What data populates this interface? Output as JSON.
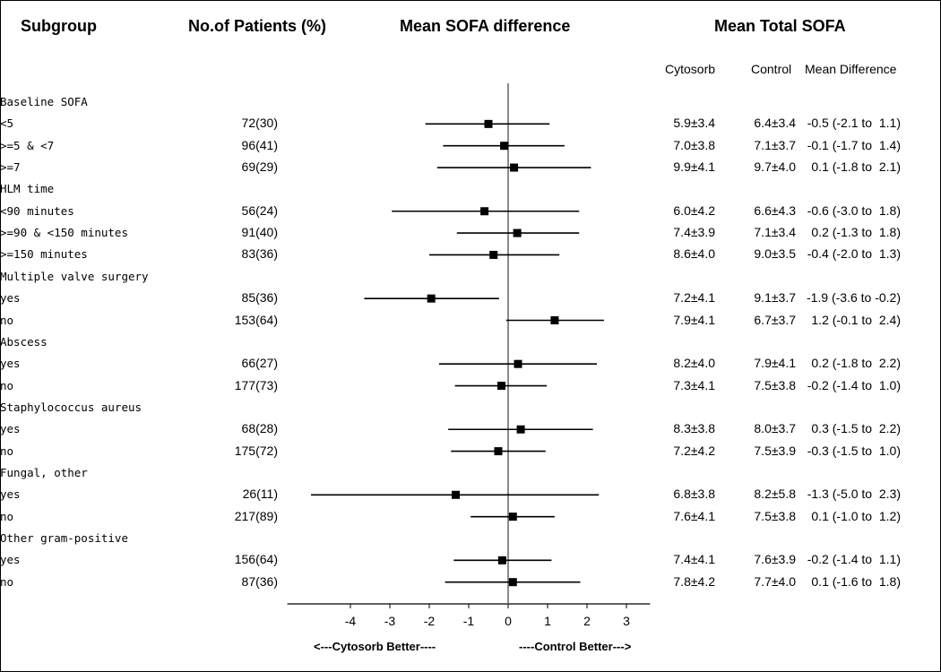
{
  "headers": {
    "subgroup": "Subgroup",
    "patients": "No.of Patients (%)",
    "sofa_diff": "Mean SOFA difference",
    "total_sofa": "Mean Total SOFA",
    "cytosorb": "Cytosorb",
    "control": "Control",
    "mean_difference": "Mean Difference"
  },
  "axis": {
    "direction_left": "<---Cytosorb Better----",
    "direction_right": "----Control Better--->"
  },
  "chart_data": {
    "type": "forest",
    "xlim": [
      -5.6,
      3.6
    ],
    "reference_line": 0,
    "xticks": [
      -4,
      -3,
      -2,
      -1,
      0,
      1,
      2,
      3
    ],
    "xtick_labels": [
      "-4",
      "-3",
      "-2",
      "-1",
      "0",
      "1",
      "2",
      "3"
    ],
    "groups": [
      {
        "label": "Baseline SOFA",
        "rows": [
          {
            "label": "<5",
            "n": "72(30)",
            "cytosorb": "5.9±3.4",
            "control": "6.4±3.4",
            "diff_text": "-0.5 (-2.1 to  1.1)",
            "mean": -0.5,
            "lo": -2.1,
            "hi": 1.05
          },
          {
            "label": ">=5 & <7",
            "n": "96(41)",
            "cytosorb": "7.0±3.8",
            "control": "7.1±3.7",
            "diff_text": "-0.1 (-1.7 to  1.4)",
            "mean": -0.1,
            "lo": -1.65,
            "hi": 1.43
          },
          {
            "label": ">=7",
            "n": "69(29)",
            "cytosorb": "9.9±4.1",
            "control": "9.7±4.0",
            "diff_text": " 0.1 (-1.8 to  2.1)",
            "mean": 0.15,
            "lo": -1.8,
            "hi": 2.1
          }
        ]
      },
      {
        "label": "HLM time",
        "rows": [
          {
            "label": "<90 minutes",
            "n": "56(24)",
            "cytosorb": "6.0±4.2",
            "control": "6.6±4.3",
            "diff_text": "-0.6 (-3.0 to  1.8)",
            "mean": -0.6,
            "lo": -2.95,
            "hi": 1.8
          },
          {
            "label": ">=90 & <150 minutes",
            "n": "91(40)",
            "cytosorb": "7.4±3.9",
            "control": "7.1±3.4",
            "diff_text": " 0.2 (-1.3 to  1.8)",
            "mean": 0.23,
            "lo": -1.3,
            "hi": 1.8
          },
          {
            "label": ">=150 minutes",
            "n": "83(36)",
            "cytosorb": "8.6±4.0",
            "control": "9.0±3.5",
            "diff_text": "-0.4 (-2.0 to  1.3)",
            "mean": -0.37,
            "lo": -2.0,
            "hi": 1.3
          }
        ]
      },
      {
        "label": "Multiple valve surgery",
        "rows": [
          {
            "label": "yes",
            "n": "85(36)",
            "cytosorb": "7.2±4.1",
            "control": "9.1±3.7",
            "diff_text": "-1.9 (-3.6 to -0.2)",
            "mean": -1.95,
            "lo": -3.65,
            "hi": -0.23
          },
          {
            "label": "no",
            "n": "153(64)",
            "cytosorb": "7.9±4.1",
            "control": "6.7±3.7",
            "diff_text": " 1.2 (-0.1 to  2.4)",
            "mean": 1.18,
            "lo": -0.05,
            "hi": 2.43
          }
        ]
      },
      {
        "label": "Abscess",
        "rows": [
          {
            "label": "yes",
            "n": "66(27)",
            "cytosorb": "8.2±4.0",
            "control": "7.9±4.1",
            "diff_text": " 0.2 (-1.8 to  2.2)",
            "mean": 0.25,
            "lo": -1.75,
            "hi": 2.25
          },
          {
            "label": "no",
            "n": "177(73)",
            "cytosorb": "7.3±4.1",
            "control": "7.5±3.8",
            "diff_text": "-0.2 (-1.4 to  1.0)",
            "mean": -0.17,
            "lo": -1.35,
            "hi": 0.98
          }
        ]
      },
      {
        "label": "Staphylococcus aureus",
        "rows": [
          {
            "label": "yes",
            "n": "68(28)",
            "cytosorb": "8.3±3.8",
            "control": "8.0±3.7",
            "diff_text": " 0.3 (-1.5 to  2.2)",
            "mean": 0.32,
            "lo": -1.52,
            "hi": 2.15
          },
          {
            "label": "no",
            "n": "175(72)",
            "cytosorb": "7.2±4.2",
            "control": "7.5±3.9",
            "diff_text": "-0.3 (-1.5 to  1.0)",
            "mean": -0.25,
            "lo": -1.45,
            "hi": 0.95
          }
        ]
      },
      {
        "label": "Fungal, other",
        "rows": [
          {
            "label": "yes",
            "n": "26(11)",
            "cytosorb": "6.8±3.8",
            "control": "8.2±5.8",
            "diff_text": "-1.3 (-5.0 to  2.3)",
            "mean": -1.33,
            "lo": -5.0,
            "hi": 2.3
          },
          {
            "label": "no",
            "n": "217(89)",
            "cytosorb": "7.6±4.1",
            "control": "7.5±3.8",
            "diff_text": " 0.1 (-1.0 to  1.2)",
            "mean": 0.12,
            "lo": -0.95,
            "hi": 1.18
          }
        ]
      },
      {
        "label": "Other gram-positive",
        "rows": [
          {
            "label": "yes",
            "n": "156(64)",
            "cytosorb": "7.4±4.1",
            "control": "7.6±3.9",
            "diff_text": "-0.2 (-1.4 to  1.1)",
            "mean": -0.15,
            "lo": -1.38,
            "hi": 1.1
          },
          {
            "label": "no",
            "n": "87(36)",
            "cytosorb": "7.8±4.2",
            "control": "7.7±4.0",
            "diff_text": " 0.1 (-1.6 to  1.8)",
            "mean": 0.12,
            "lo": -1.6,
            "hi": 1.83
          }
        ]
      }
    ]
  }
}
